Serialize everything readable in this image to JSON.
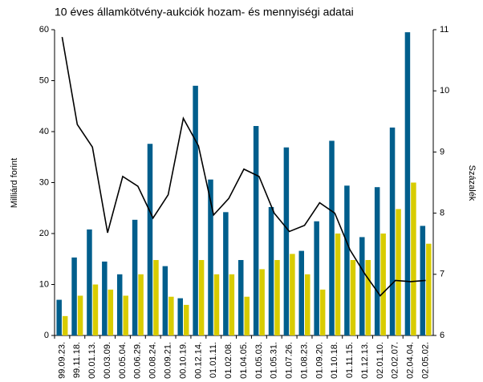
{
  "chart_data": {
    "type": "bar",
    "title": "10 éves államkötvény-aukciók hozam- és mennyiségi adatai",
    "y_label": "Milliárd forint",
    "y2_label": "Százalék",
    "categories": [
      "99.09.23.",
      "99.11.18.",
      "00.01.13.",
      "00.03.09.",
      "00.05.04.",
      "00.06.29.",
      "00.08.24.",
      "00.09.21.",
      "00.10.19.",
      "00.12.14.",
      "01.01.11.",
      "01.02.08.",
      "01.04.05.",
      "01.05.03.",
      "01.05.31.",
      "01.07.26.",
      "01.08.23.",
      "01.09.20.",
      "01.10.18.",
      "01.11.15.",
      "01.12.13.",
      "02.01.10.",
      "02.02.07.",
      "02.04.04.",
      "02.05.02."
    ],
    "series": [
      {
        "color": "#005e8c",
        "type": "bar",
        "values": [
          7,
          15.3,
          20.8,
          14.5,
          12,
          22.7,
          37.6,
          13.6,
          7.3,
          49,
          30.6,
          24.2,
          14.8,
          41.1,
          25.2,
          36.9,
          16.6,
          22.4,
          38.2,
          29.4,
          19.3,
          29.1,
          40.8,
          59.5,
          21.5
        ]
      },
      {
        "color": "#d8cc00",
        "type": "bar",
        "values": [
          3.8,
          7.8,
          10,
          9,
          7.8,
          12,
          14.8,
          7.6,
          6,
          14.8,
          12,
          12,
          7.6,
          13,
          14.8,
          16,
          12,
          9,
          20,
          14.8,
          14.8,
          20,
          24.8,
          30,
          18
        ]
      },
      {
        "color": "#000000",
        "type": "line",
        "axis": "y2",
        "values": [
          10.88,
          9.45,
          9.08,
          7.68,
          8.6,
          8.44,
          7.92,
          8.3,
          9.55,
          9.1,
          7.97,
          8.24,
          8.72,
          8.6,
          8.0,
          7.7,
          7.8,
          8.17,
          8.0,
          7.4,
          7.0,
          6.65,
          6.9,
          6.88,
          6.9
        ]
      }
    ],
    "ylim": [
      0,
      60
    ],
    "yticks": [
      0,
      10,
      20,
      30,
      40,
      50,
      60
    ],
    "y2lim": [
      6,
      11
    ],
    "y2ticks": [
      6,
      7,
      8,
      9,
      10,
      11
    ]
  }
}
